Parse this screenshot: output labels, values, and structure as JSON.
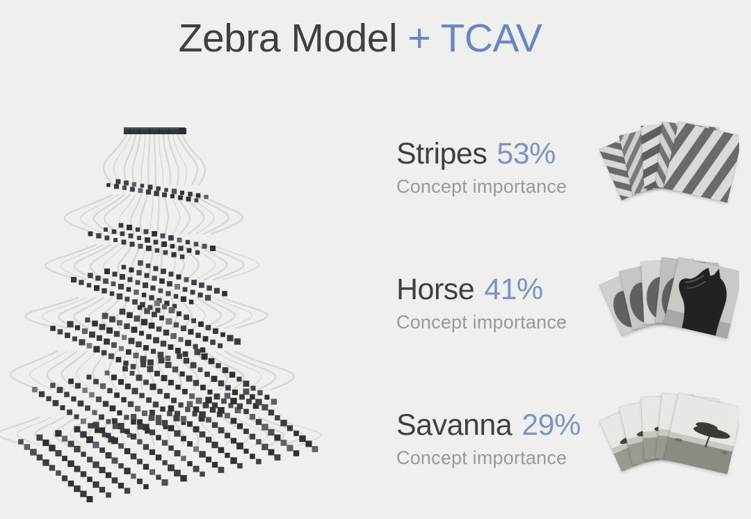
{
  "slide": {
    "title": {
      "model": "Zebra Model",
      "plus": " + ",
      "method": "TCAV"
    },
    "concepts": [
      {
        "id": "stripes",
        "name": "Stripes",
        "importance": "53%",
        "caption": "Concept importance",
        "thumbnails": "stripes-example-photos"
      },
      {
        "id": "horse",
        "name": "Horse",
        "importance": "41%",
        "caption": "Concept importance",
        "thumbnails": "horse-example-photos"
      },
      {
        "id": "savanna",
        "name": "Savanna",
        "importance": "29%",
        "caption": "Concept importance",
        "thumbnails": "savanna-example-photos"
      }
    ],
    "illustration": {
      "description": "zebra-model-neural-network"
    },
    "colors": {
      "background": "#efefed",
      "title_text": "#3d4043",
      "accent_blue": "#6886c1",
      "value_blue": "#7e93c0",
      "caption_gray": "#97999b"
    }
  }
}
